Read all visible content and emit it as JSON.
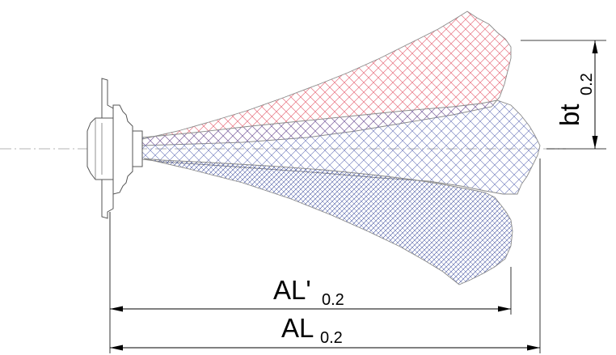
{
  "colors": {
    "red_hatch": "#e8707f",
    "blue_hatch": "#4a5aa8",
    "outline": "#8a8a8a",
    "dim_line": "#000000",
    "centerline": "#9a9a9a"
  },
  "labels": {
    "al_prime_main": "AL'",
    "al_prime_sub": "0.2",
    "al_main": "AL",
    "al_sub": "0.2",
    "bt_main": "bt",
    "bt_sub": "0.2"
  }
}
